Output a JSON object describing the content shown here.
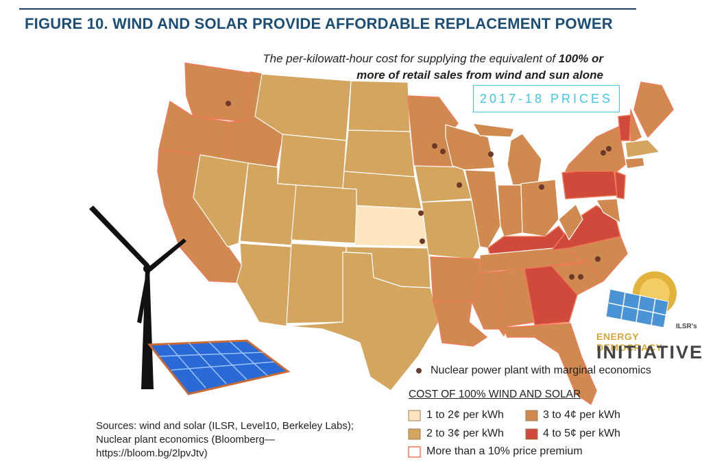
{
  "figure": {
    "title": "FIGURE 10. WIND AND SOLAR PROVIDE AFFORDABLE REPLACEMENT POWER",
    "subtitle_part1": "The per-kilowatt-hour cost for supplying the equivalent of ",
    "subtitle_bold": "100% or more of retail sales from wind and sun alone",
    "badge": "2017-18 PRICES"
  },
  "legend": {
    "nuclear": "Nuclear power plant with marginal economics",
    "heading": "COST OF 100% WIND AND SOLAR",
    "items": [
      {
        "label": "1 to 2¢ per kWh",
        "color": "#fde5bf"
      },
      {
        "label": "3 to 4¢ per kWh",
        "color": "#d08a4f"
      },
      {
        "label": "2 to 3¢ per kWh",
        "color": "#d3a55e"
      },
      {
        "label": "4 to 5¢ per kWh",
        "color": "#cf4a3a"
      }
    ],
    "premium": "More than a 10% price premium",
    "premium_color": "#f07a58"
  },
  "sources": "Sources: wind and solar (ILSR, Level10, Berkeley Labs); Nuclear plant economics (Bloomberg—https://bloom.bg/2lpvJtv)",
  "logo": {
    "small": "ILSR's",
    "line1": "ENERGY DEMOCRACY",
    "line2": "INITIATIVE"
  },
  "map": {
    "colors": {
      "c12": "#fde5bf",
      "c23": "#d3a55e",
      "c34": "#d08a4f",
      "c45": "#cf4a3a",
      "premium_border": "#f07a58",
      "nuclear_dot": "#6b3a2a"
    },
    "icons": [
      "wind-turbine-icon",
      "solar-panel-icon",
      "logo-sun-icon"
    ]
  }
}
